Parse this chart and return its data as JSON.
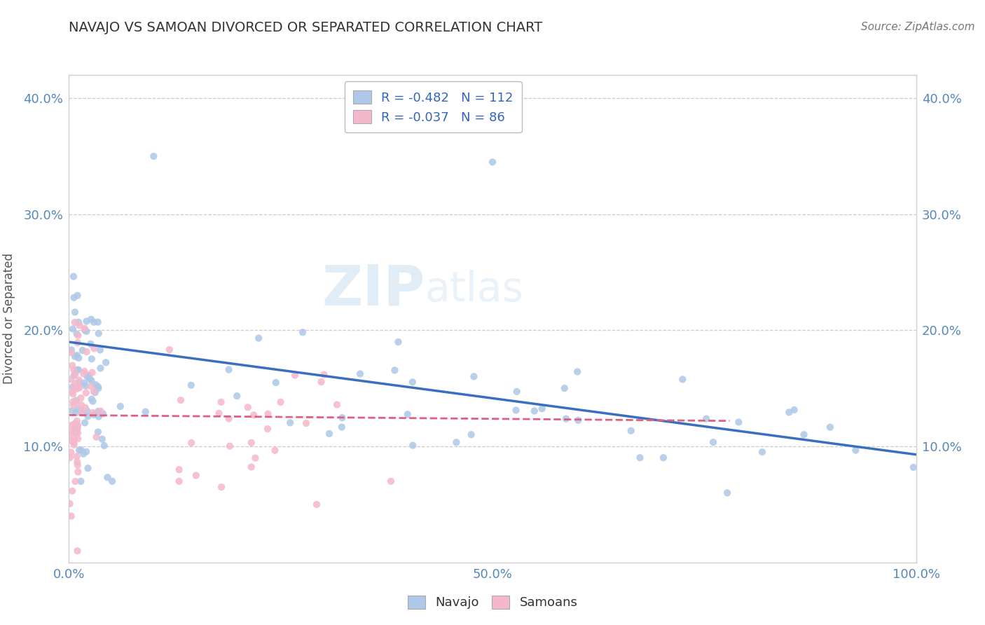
{
  "title": "NAVAJO VS SAMOAN DIVORCED OR SEPARATED CORRELATION CHART",
  "source": "Source: ZipAtlas.com",
  "ylabel": "Divorced or Separated",
  "xlim": [
    0.0,
    1.0
  ],
  "ylim": [
    0.0,
    0.42
  ],
  "xtick_vals": [
    0.0,
    0.1,
    0.2,
    0.3,
    0.4,
    0.5,
    0.6,
    0.7,
    0.8,
    0.9,
    1.0
  ],
  "xtick_labels": [
    "0.0%",
    "",
    "",
    "",
    "",
    "50.0%",
    "",
    "",
    "",
    "",
    "100.0%"
  ],
  "ytick_vals": [
    0.0,
    0.1,
    0.2,
    0.3,
    0.4
  ],
  "ytick_labels": [
    "",
    "10.0%",
    "20.0%",
    "30.0%",
    "40.0%"
  ],
  "navajo_R": -0.482,
  "navajo_N": 112,
  "samoan_R": -0.037,
  "samoan_N": 86,
  "navajo_color": "#adc8e8",
  "samoan_color": "#f5b8cb",
  "navajo_line_color": "#3a6fc0",
  "samoan_line_color": "#e06080",
  "legend_navajo_label": "Navajo",
  "legend_samoan_label": "Samoans",
  "navajo_line_x0": 0.0,
  "navajo_line_y0": 0.19,
  "navajo_line_x1": 1.0,
  "navajo_line_y1": 0.093,
  "samoan_line_x0": 0.0,
  "samoan_line_y0": 0.127,
  "samoan_line_x1": 0.78,
  "samoan_line_y1": 0.122
}
